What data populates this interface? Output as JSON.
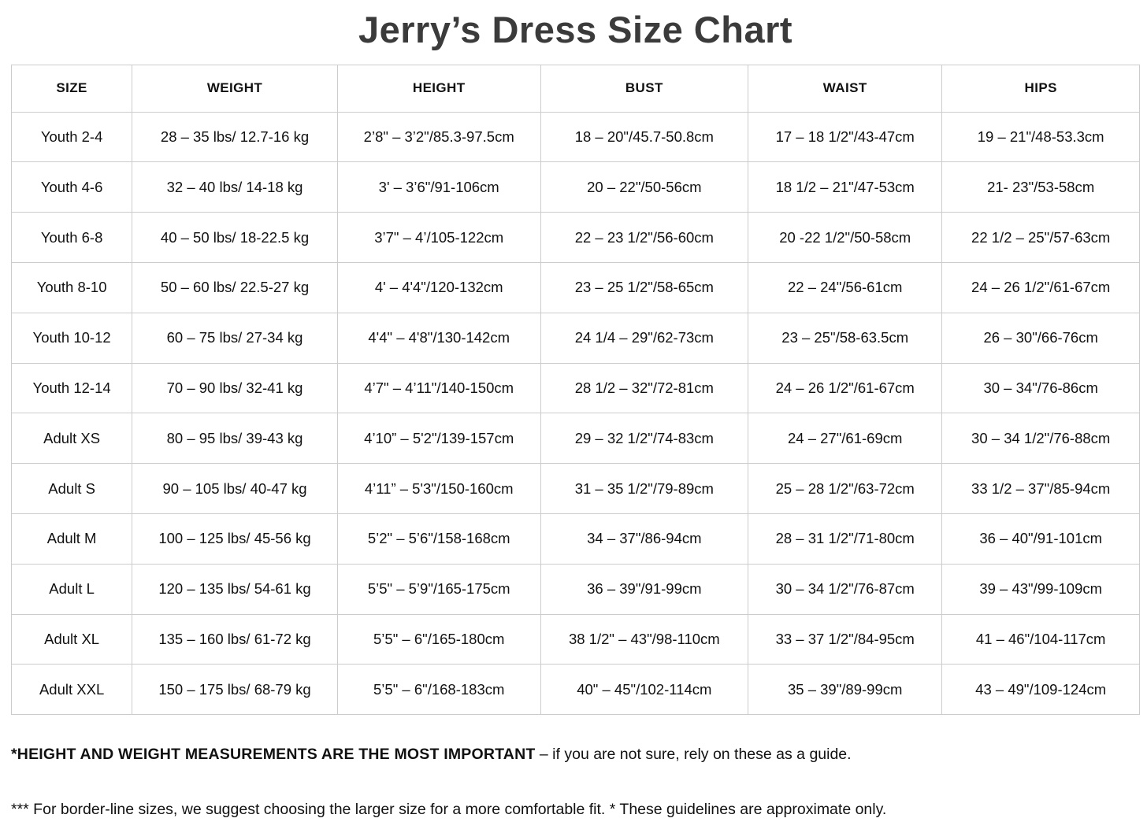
{
  "title": "Jerry’s Dress Size Chart",
  "table": {
    "headers": [
      "SIZE",
      "WEIGHT",
      "HEIGHT",
      "BUST",
      "WAIST",
      "HIPS"
    ],
    "rows": [
      [
        "Youth 2-4",
        "28 – 35 lbs/ 12.7-16 kg",
        "2’8\" – 3’2\"/85.3-97.5cm",
        "18 – 20\"/45.7-50.8cm",
        "17 – 18 1/2\"/43-47cm",
        "19 – 21\"/48-53.3cm"
      ],
      [
        "Youth 4-6",
        "32 – 40 lbs/ 14-18 kg",
        "3' – 3’6\"/91-106cm",
        "20 – 22\"/50-56cm",
        "18 1/2 – 21\"/47-53cm",
        "21- 23\"/53-58cm"
      ],
      [
        "Youth 6-8",
        "40 – 50 lbs/ 18-22.5 kg",
        "3’7\" – 4’/105-122cm",
        "22 – 23 1/2\"/56-60cm",
        "20 -22 1/2\"/50-58cm",
        "22 1/2 – 25\"/57-63cm"
      ],
      [
        "Youth 8-10",
        "50 – 60 lbs/ 22.5-27 kg",
        "4' – 4'4\"/120-132cm",
        "23 – 25 1/2\"/58-65cm",
        "22 – 24\"/56-61cm",
        "24 – 26 1/2\"/61-67cm"
      ],
      [
        "Youth 10-12",
        "60 – 75 lbs/ 27-34 kg",
        "4'4\" – 4'8\"/130-142cm",
        "24 1/4 – 29\"/62-73cm",
        "23 – 25\"/58-63.5cm",
        "26 – 30\"/66-76cm"
      ],
      [
        "Youth 12-14",
        "70 – 90 lbs/ 32-41 kg",
        "4’7\" – 4’11\"/140-150cm",
        "28 1/2 – 32\"/72-81cm",
        "24 – 26 1/2\"/61-67cm",
        "30 – 34\"/76-86cm"
      ],
      [
        "Adult XS",
        "80 – 95 lbs/ 39-43 kg",
        "4’10” – 5'2\"/139-157cm",
        "29 – 32 1/2\"/74-83cm",
        "24 – 27\"/61-69cm",
        "30 – 34 1/2\"/76-88cm"
      ],
      [
        "Adult S",
        "90 – 105 lbs/ 40-47 kg",
        "4’11” – 5'3\"/150-160cm",
        "31 – 35 1/2\"/79-89cm",
        "25 – 28 1/2\"/63-72cm",
        "33 1/2 – 37\"/85-94cm"
      ],
      [
        "Adult M",
        "100 – 125 lbs/ 45-56 kg",
        "5’2\" – 5’6\"/158-168cm",
        "34 – 37\"/86-94cm",
        "28 – 31 1/2\"/71-80cm",
        "36 – 40\"/91-101cm"
      ],
      [
        "Adult L",
        "120 – 135 lbs/ 54-61 kg",
        "5’5\" – 5’9\"/165-175cm",
        "36 – 39\"/91-99cm",
        "30 – 34 1/2\"/76-87cm",
        "39 – 43\"/99-109cm"
      ],
      [
        "Adult XL",
        "135 – 160 lbs/ 61-72 kg",
        "5’5\" – 6\"/165-180cm",
        "38 1/2\" – 43\"/98-110cm",
        "33 – 37 1/2\"/84-95cm",
        "41 – 46\"/104-117cm"
      ],
      [
        "Adult XXL",
        "150 – 175 lbs/ 68-79 kg",
        "5’5\" – 6\"/168-183cm",
        "40\" – 45\"/102-114cm",
        "35 – 39\"/89-99cm",
        "43 – 49\"/109-124cm"
      ]
    ]
  },
  "notes": {
    "note1_bold": "*HEIGHT AND WEIGHT MEASUREMENTS ARE THE MOST IMPORTANT",
    "note1_rest": " – if you are not sure, rely on these as a guide.",
    "note2": "*** For border-line sizes, we suggest choosing the larger size for a more comfortable fit. * These guidelines are approximate only."
  },
  "colors": {
    "title_text": "#3b3b3b",
    "body_text": "#111111",
    "table_border": "#cccccc",
    "background": "#ffffff"
  }
}
